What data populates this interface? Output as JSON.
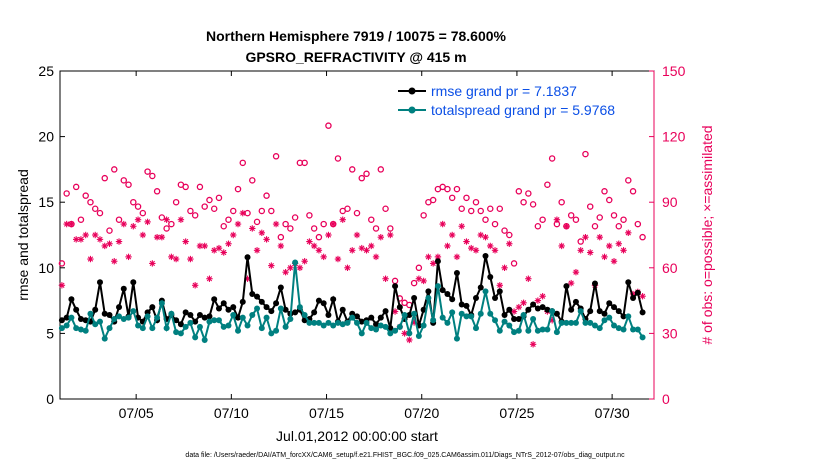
{
  "chart_data": {
    "type": "line",
    "title": "Northern Hemisphere 7919 / 10075 = 78.600%",
    "subtitle": "GPSRO_REFRACTIVITY @ 415 m",
    "xlabel": "Jul.01,2012 00:00:00 start",
    "ylabel_left": "rmse and totalspread",
    "ylabel_right": "# of obs: o=possible; ×=assimilated",
    "xlim": [
      1.0,
      32.2
    ],
    "ylim_left": [
      0,
      25
    ],
    "ylim_right": [
      0,
      150
    ],
    "x_ticks": [
      {
        "value": 5,
        "label": "07/05"
      },
      {
        "value": 10,
        "label": "07/10"
      },
      {
        "value": 15,
        "label": "07/15"
      },
      {
        "value": 20,
        "label": "07/20"
      },
      {
        "value": 25,
        "label": "07/25"
      },
      {
        "value": 30,
        "label": "07/30"
      }
    ],
    "y_ticks_left": [
      "0",
      "5",
      "10",
      "15",
      "20",
      "25"
    ],
    "y_ticks_right": [
      "0",
      "30",
      "60",
      "90",
      "120",
      "150"
    ],
    "series": [
      {
        "name": "rmse grand pr = 7.1837",
        "color": "#000000",
        "axis": "left",
        "x": [
          1.1,
          1.35,
          1.6,
          1.85,
          2.1,
          2.35,
          2.6,
          2.85,
          3.1,
          3.35,
          3.6,
          3.85,
          4.1,
          4.35,
          4.6,
          4.85,
          5.1,
          5.35,
          5.6,
          5.85,
          6.1,
          6.35,
          6.6,
          6.85,
          7.1,
          7.35,
          7.6,
          7.85,
          8.1,
          8.35,
          8.6,
          8.85,
          9.1,
          9.35,
          9.6,
          9.85,
          10.1,
          10.35,
          10.6,
          10.85,
          11.1,
          11.35,
          11.6,
          11.85,
          12.1,
          12.35,
          12.6,
          12.85,
          13.1,
          13.35,
          13.6,
          13.85,
          14.1,
          14.35,
          14.6,
          14.85,
          15.1,
          15.35,
          15.6,
          15.85,
          16.1,
          16.35,
          16.6,
          16.85,
          17.1,
          17.35,
          17.6,
          17.85,
          18.1,
          18.35,
          18.6,
          18.85,
          19.1,
          19.35,
          19.6,
          19.85,
          20.1,
          20.35,
          20.6,
          20.85,
          21.1,
          21.35,
          21.6,
          21.85,
          22.1,
          22.35,
          22.6,
          22.85,
          23.1,
          23.35,
          23.6,
          23.85,
          24.1,
          24.35,
          24.6,
          24.85,
          25.1,
          25.35,
          25.6,
          25.85,
          26.1,
          26.35,
          26.6,
          26.85,
          27.1,
          27.35,
          27.6,
          27.85,
          28.1,
          28.35,
          28.6,
          28.85,
          29.1,
          29.35,
          29.6,
          29.85,
          30.1,
          30.35,
          30.6,
          30.85,
          31.1,
          31.35,
          31.6
        ],
        "values": [
          6.0,
          6.2,
          7.6,
          6.8,
          6.1,
          6.0,
          5.9,
          6.8,
          8.9,
          6.5,
          6.4,
          5.9,
          7.0,
          8.4,
          6.3,
          8.9,
          6.2,
          5.9,
          6.6,
          7.0,
          6.0,
          7.5,
          6.1,
          6.4,
          6.0,
          5.7,
          6.6,
          6.4,
          5.9,
          6.4,
          6.2,
          6.3,
          7.6,
          6.9,
          7.3,
          6.8,
          7.0,
          6.2,
          7.4,
          10.8,
          8.0,
          7.8,
          7.4,
          7.0,
          6.7,
          7.3,
          8.5,
          6.8,
          6.5,
          6.6,
          6.8,
          6.0,
          6.1,
          6.6,
          7.5,
          7.3,
          6.4,
          7.6,
          5.9,
          6.8,
          5.9,
          6.5,
          6.3,
          5.9,
          6.0,
          6.2,
          5.7,
          6.2,
          6.7,
          5.4,
          8.6,
          7.0,
          6.1,
          6.4,
          7.7,
          5.6,
          6.8,
          8.2,
          5.8,
          10.5,
          8.3,
          8.0,
          7.6,
          9.6,
          7.2,
          7.1,
          6.4,
          7.7,
          8.5,
          10.9,
          9.3,
          7.7,
          8.2,
          6.4,
          6.8,
          6.1,
          6.1,
          6.3,
          6.8,
          7.2,
          6.9,
          7.0,
          6.8,
          6.7,
          6.5,
          5.9,
          8.6,
          6.8,
          7.4,
          6.9,
          6.1,
          6.7,
          8.8,
          6.7,
          6.5,
          7.3,
          7.0,
          6.7,
          6.3,
          8.9,
          7.7,
          8.1,
          6.6
        ]
      },
      {
        "name": "totalspread grand pr = 5.9768",
        "color": "#008080",
        "axis": "left",
        "x": [
          1.1,
          1.35,
          1.6,
          1.85,
          2.1,
          2.35,
          2.6,
          2.85,
          3.1,
          3.35,
          3.6,
          3.85,
          4.1,
          4.35,
          4.6,
          4.85,
          5.1,
          5.35,
          5.6,
          5.85,
          6.1,
          6.35,
          6.6,
          6.85,
          7.1,
          7.35,
          7.6,
          7.85,
          8.1,
          8.35,
          8.6,
          8.85,
          9.1,
          9.35,
          9.6,
          9.85,
          10.1,
          10.35,
          10.6,
          10.85,
          11.1,
          11.35,
          11.6,
          11.85,
          12.1,
          12.35,
          12.6,
          12.85,
          13.1,
          13.35,
          13.6,
          13.85,
          14.1,
          14.35,
          14.6,
          14.85,
          15.1,
          15.35,
          15.6,
          15.85,
          16.1,
          16.35,
          16.6,
          16.85,
          17.1,
          17.35,
          17.6,
          17.85,
          18.1,
          18.35,
          18.6,
          18.85,
          19.1,
          19.35,
          19.6,
          19.85,
          20.1,
          20.35,
          20.6,
          20.85,
          21.1,
          21.35,
          21.6,
          21.85,
          22.1,
          22.35,
          22.6,
          22.85,
          23.1,
          23.35,
          23.6,
          23.85,
          24.1,
          24.35,
          24.6,
          24.85,
          25.1,
          25.35,
          25.6,
          25.85,
          26.1,
          26.35,
          26.6,
          26.85,
          27.1,
          27.35,
          27.6,
          27.85,
          28.1,
          28.35,
          28.6,
          28.85,
          29.1,
          29.35,
          29.6,
          29.85,
          30.1,
          30.35,
          30.6,
          30.85,
          31.1,
          31.35,
          31.6
        ],
        "values": [
          5.4,
          5.6,
          6.2,
          5.4,
          5.3,
          5.2,
          6.5,
          5.7,
          5.9,
          4.6,
          5.4,
          6.1,
          6.3,
          6.1,
          6.2,
          6.7,
          5.6,
          5.4,
          6.3,
          5.4,
          6.2,
          7.3,
          5.4,
          6.5,
          5.1,
          5.0,
          5.5,
          5.8,
          4.7,
          5.5,
          4.5,
          5.9,
          6.0,
          6.0,
          5.5,
          5.6,
          6.4,
          5.2,
          6.2,
          5.6,
          6.4,
          6.9,
          5.4,
          6.2,
          5.0,
          5.2,
          6.9,
          5.5,
          6.1,
          10.4,
          7.0,
          6.4,
          5.8,
          5.8,
          5.8,
          5.6,
          5.8,
          5.6,
          5.8,
          5.7,
          5.8,
          6.2,
          5.8,
          5.0,
          5.8,
          5.4,
          5.3,
          5.6,
          5.5,
          5.0,
          5.2,
          5.5,
          6.4,
          5.0,
          6.5,
          4.8,
          5.6,
          7.7,
          6.0,
          8.6,
          6.2,
          5.8,
          6.6,
          4.6,
          6.5,
          6.3,
          6.3,
          5.4,
          6.5,
          8.2,
          6.5,
          6.0,
          5.2,
          5.9,
          5.6,
          5.1,
          5.2,
          6.4,
          5.2,
          6.1,
          5.2,
          5.3,
          5.3,
          6.7,
          5.1,
          5.8,
          5.8,
          5.8,
          5.8,
          6.7,
          5.8,
          5.8,
          5.6,
          5.4,
          6.0,
          6.2,
          5.6,
          5.4,
          5.3,
          6.3,
          5.3,
          5.3,
          4.7
        ]
      },
      {
        "name": "possible",
        "color": "#e8005a",
        "axis": "right",
        "marker": "circle",
        "x": [
          1.1,
          1.35,
          1.6,
          1.85,
          2.1,
          2.35,
          2.6,
          2.85,
          3.1,
          3.35,
          3.6,
          3.85,
          4.1,
          4.35,
          4.6,
          4.85,
          5.1,
          5.35,
          5.6,
          5.85,
          6.1,
          6.35,
          6.6,
          6.85,
          7.1,
          7.35,
          7.6,
          7.85,
          8.1,
          8.35,
          8.6,
          8.85,
          9.1,
          9.35,
          9.6,
          9.85,
          10.1,
          10.35,
          10.6,
          10.85,
          11.1,
          11.35,
          11.6,
          11.85,
          12.1,
          12.35,
          12.6,
          12.85,
          13.1,
          13.35,
          13.6,
          13.85,
          14.1,
          14.35,
          14.6,
          14.85,
          15.1,
          15.35,
          15.6,
          15.85,
          16.1,
          16.35,
          16.6,
          16.85,
          17.1,
          17.35,
          17.6,
          17.85,
          18.1,
          18.35,
          18.6,
          18.85,
          19.1,
          19.35,
          19.6,
          19.85,
          20.1,
          20.35,
          20.6,
          20.85,
          21.1,
          21.35,
          21.6,
          21.85,
          22.1,
          22.35,
          22.6,
          22.85,
          23.1,
          23.35,
          23.6,
          23.85,
          24.1,
          24.35,
          24.6,
          24.85,
          25.1,
          25.35,
          25.6,
          25.85,
          26.1,
          26.35,
          26.6,
          26.85,
          27.1,
          27.35,
          27.6,
          27.85,
          28.1,
          28.35,
          28.6,
          28.85,
          29.1,
          29.35,
          29.6,
          29.85,
          30.1,
          30.35,
          30.6,
          30.85,
          31.1,
          31.35,
          31.6
        ],
        "values": [
          62,
          94,
          80,
          97,
          82,
          93,
          90,
          87,
          85,
          101,
          77,
          105,
          82,
          100,
          98,
          90,
          88,
          85,
          104,
          102,
          95,
          83,
          78,
          80,
          90,
          98,
          97,
          86,
          84,
          97,
          88,
          91,
          87,
          92,
          79,
          82,
          86,
          96,
          108,
          85,
          100,
          81,
          86,
          93,
          86,
          111,
          74,
          80,
          78,
          83,
          108,
          108,
          84,
          78,
          74,
          80,
          125,
          80,
          110,
          86,
          87,
          105,
          85,
          101,
          103,
          82,
          78,
          105,
          87,
          78,
          54,
          46,
          44,
          43,
          53,
          60,
          84,
          90,
          91,
          96,
          97,
          96,
          92,
          96,
          87,
          92,
          86,
          90,
          86,
          82,
          87,
          80,
          87,
          77,
          75,
          62,
          95,
          90,
          94,
          89,
          79,
          82,
          98,
          110,
          80,
          90,
          79,
          84,
          82,
          72,
          112,
          88,
          79,
          83,
          95,
          91,
          84,
          79,
          82,
          100,
          95,
          80,
          74
        ]
      },
      {
        "name": "assimilated",
        "color": "#e8005a",
        "axis": "right",
        "marker": "asterisk",
        "x": [
          1.1,
          1.35,
          1.6,
          1.85,
          2.1,
          2.35,
          2.6,
          2.85,
          3.1,
          3.35,
          3.6,
          3.85,
          4.1,
          4.35,
          4.6,
          4.85,
          5.1,
          5.35,
          5.6,
          5.85,
          6.1,
          6.35,
          6.6,
          6.85,
          7.1,
          7.35,
          7.6,
          7.85,
          8.1,
          8.35,
          8.6,
          8.85,
          9.1,
          9.35,
          9.6,
          9.85,
          10.1,
          10.35,
          10.6,
          10.85,
          11.1,
          11.35,
          11.6,
          11.85,
          12.1,
          12.35,
          12.6,
          12.85,
          13.1,
          13.35,
          13.6,
          13.85,
          14.1,
          14.35,
          14.6,
          14.85,
          15.1,
          15.35,
          15.6,
          15.85,
          16.1,
          16.35,
          16.6,
          16.85,
          17.1,
          17.35,
          17.6,
          17.85,
          18.1,
          18.35,
          18.6,
          18.85,
          19.1,
          19.35,
          19.6,
          19.85,
          20.1,
          20.35,
          20.6,
          20.85,
          21.1,
          21.35,
          21.6,
          21.85,
          22.1,
          22.35,
          22.6,
          22.85,
          23.1,
          23.35,
          23.6,
          23.85,
          24.1,
          24.35,
          24.6,
          24.85,
          25.1,
          25.35,
          25.6,
          25.85,
          26.1,
          26.35,
          26.6,
          26.85,
          27.1,
          27.35,
          27.6,
          27.85,
          28.1,
          28.35,
          28.6,
          28.85,
          29.1,
          29.35,
          29.6,
          29.85,
          30.1,
          30.35,
          30.6,
          30.85,
          31.1,
          31.35,
          31.6
        ],
        "values": [
          52,
          80,
          80,
          73,
          73,
          75,
          64,
          75,
          73,
          70,
          71,
          63,
          72,
          80,
          65,
          79,
          82,
          75,
          81,
          62,
          74,
          74,
          82,
          65,
          64,
          82,
          72,
          64,
          52,
          70,
          70,
          55,
          68,
          69,
          67,
          71,
          75,
          80,
          85,
          55,
          78,
          68,
          76,
          73,
          61,
          80,
          70,
          58,
          60,
          62,
          60,
          63,
          72,
          70,
          68,
          65,
          75,
          80,
          64,
          82,
          60,
          68,
          75,
          69,
          68,
          70,
          65,
          74,
          55,
          75,
          40,
          33,
          30,
          27,
          35,
          55,
          54,
          65,
          62,
          65,
          80,
          70,
          75,
          65,
          79,
          72,
          69,
          68,
          75,
          74,
          70,
          68,
          52,
          60,
          71,
          40,
          42,
          44,
          55,
          25,
          45,
          47,
          40,
          36,
          82,
          70,
          79,
          53,
          58,
          68,
          74,
          67,
          52,
          74,
          65,
          70,
          63,
          71,
          68,
          76,
          48,
          49,
          47
        ]
      }
    ],
    "legend_position": "top-right",
    "footer": "data file: /Users/raeder/DAI/ATM_forcXX/CAM6_setup/f.e21.FHIST_BGC.f09_025.CAM6assim.011/Diags_NTrS_2012-07/obs_diag_output.nc"
  },
  "colors": {
    "axes": "#000000",
    "right_axis": "#e8005a",
    "legend_text": "#0b4fe6"
  }
}
